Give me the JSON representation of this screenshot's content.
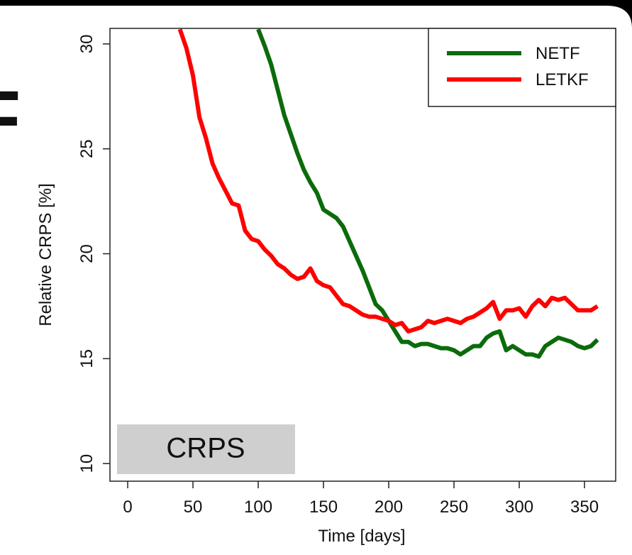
{
  "slide_title_fragment": "F",
  "chart_data": {
    "type": "line",
    "x_label": "Time [days]",
    "y_label": "Relative CRPS [%]",
    "annotation": "CRPS",
    "x": [
      40,
      45,
      50,
      55,
      60,
      65,
      70,
      75,
      80,
      85,
      90,
      95,
      100,
      105,
      110,
      115,
      120,
      125,
      130,
      135,
      140,
      145,
      150,
      155,
      160,
      165,
      170,
      175,
      180,
      185,
      190,
      195,
      200,
      205,
      210,
      215,
      220,
      225,
      230,
      235,
      240,
      245,
      250,
      255,
      260,
      265,
      270,
      275,
      280,
      285,
      290,
      295,
      300,
      305,
      310,
      315,
      320,
      325,
      330,
      335,
      340,
      345,
      350,
      355,
      360
    ],
    "series": [
      {
        "name": "NETF",
        "color": "#0b6b0b",
        "values": [
          null,
          null,
          null,
          null,
          null,
          null,
          null,
          null,
          null,
          null,
          null,
          null,
          30.7,
          29.9,
          29.0,
          27.8,
          26.6,
          25.7,
          24.8,
          24.0,
          23.4,
          22.9,
          22.1,
          21.9,
          21.7,
          21.3,
          20.6,
          19.9,
          19.2,
          18.4,
          17.6,
          17.3,
          16.8,
          16.3,
          15.8,
          15.8,
          15.6,
          15.7,
          15.7,
          15.6,
          15.5,
          15.5,
          15.4,
          15.2,
          15.4,
          15.6,
          15.6,
          16.0,
          16.2,
          16.3,
          15.4,
          15.6,
          15.4,
          15.2,
          15.2,
          15.1,
          15.6,
          15.8,
          16.0,
          15.9,
          15.8,
          15.6,
          15.5,
          15.6,
          15.9
        ]
      },
      {
        "name": "LETKF",
        "color": "#ff0000",
        "values": [
          30.7,
          29.8,
          28.5,
          26.5,
          25.5,
          24.3,
          23.6,
          23.0,
          22.4,
          22.3,
          21.1,
          20.7,
          20.6,
          20.2,
          19.9,
          19.5,
          19.3,
          19.0,
          18.8,
          18.9,
          19.3,
          18.7,
          18.5,
          18.4,
          18.0,
          17.6,
          17.5,
          17.3,
          17.1,
          17.0,
          17.0,
          16.9,
          16.8,
          16.6,
          16.7,
          16.3,
          16.4,
          16.5,
          16.8,
          16.7,
          16.8,
          16.9,
          16.8,
          16.7,
          16.9,
          17.0,
          17.2,
          17.4,
          17.7,
          16.9,
          17.3,
          17.3,
          17.4,
          17.0,
          17.5,
          17.8,
          17.5,
          17.9,
          17.8,
          17.9,
          17.6,
          17.3,
          17.3,
          17.3,
          17.5
        ]
      }
    ],
    "xlim": [
      -13.6,
      373.9
    ],
    "ylim": [
      9.16,
      30.74
    ],
    "xticks": [
      0,
      50,
      100,
      150,
      200,
      250,
      300,
      350
    ],
    "yticks": [
      10,
      15,
      20,
      25,
      30
    ],
    "legend": "top-right"
  }
}
